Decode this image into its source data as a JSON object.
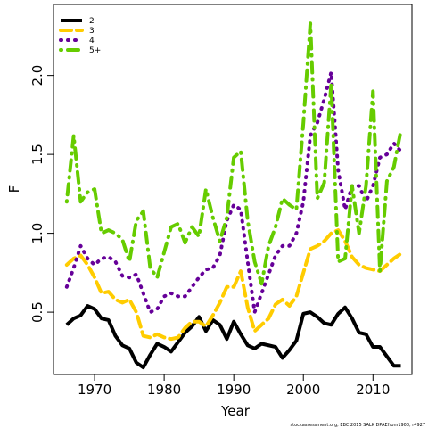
{
  "chart_data": {
    "type": "line",
    "x_label": "Year",
    "y_label": "F",
    "footnote": "stockassessment.org, EBC 2015 SALK DPAEfrom1900, r4927",
    "x": [
      1966,
      1967,
      1968,
      1969,
      1970,
      1971,
      1972,
      1973,
      1974,
      1975,
      1976,
      1977,
      1978,
      1979,
      1980,
      1981,
      1982,
      1983,
      1984,
      1985,
      1986,
      1987,
      1988,
      1989,
      1990,
      1991,
      1992,
      1993,
      1994,
      1995,
      1996,
      1997,
      1998,
      1999,
      2000,
      2001,
      2002,
      2003,
      2004,
      2005,
      2006,
      2007,
      2008,
      2009,
      2010,
      2011,
      2012,
      2013,
      2014
    ],
    "series": [
      {
        "name": "2",
        "color": "#000000",
        "line_style": "solid",
        "values": [
          0.42,
          0.46,
          0.48,
          0.54,
          0.52,
          0.46,
          0.45,
          0.35,
          0.29,
          0.27,
          0.18,
          0.15,
          0.23,
          0.3,
          0.28,
          0.25,
          0.31,
          0.37,
          0.41,
          0.47,
          0.38,
          0.45,
          0.42,
          0.33,
          0.44,
          0.36,
          0.29,
          0.27,
          0.3,
          0.29,
          0.28,
          0.21,
          0.26,
          0.32,
          0.49,
          0.5,
          0.47,
          0.43,
          0.42,
          0.49,
          0.53,
          0.46,
          0.37,
          0.36,
          0.28,
          0.28,
          0.22,
          0.16,
          0.16
        ]
      },
      {
        "name": "3",
        "color": "#ffcc00",
        "line_style": "dashed",
        "values": [
          0.8,
          0.84,
          0.86,
          0.8,
          0.72,
          0.62,
          0.63,
          0.58,
          0.56,
          0.58,
          0.5,
          0.35,
          0.34,
          0.36,
          0.34,
          0.33,
          0.34,
          0.4,
          0.44,
          0.44,
          0.41,
          0.48,
          0.56,
          0.66,
          0.66,
          0.76,
          0.53,
          0.38,
          0.42,
          0.46,
          0.55,
          0.58,
          0.54,
          0.6,
          0.75,
          0.9,
          0.92,
          0.95,
          1.0,
          1.02,
          0.95,
          0.85,
          0.8,
          0.78,
          0.77,
          0.76,
          0.8,
          0.84,
          0.87
        ]
      },
      {
        "name": "4",
        "color": "#660099",
        "line_style": "dotted",
        "values": [
          0.66,
          0.78,
          0.92,
          0.84,
          0.8,
          0.84,
          0.85,
          0.82,
          0.73,
          0.72,
          0.74,
          0.62,
          0.5,
          0.52,
          0.6,
          0.62,
          0.6,
          0.6,
          0.66,
          0.72,
          0.77,
          0.78,
          0.86,
          1.08,
          1.18,
          1.15,
          0.82,
          0.5,
          0.62,
          0.74,
          0.86,
          0.92,
          0.92,
          1.0,
          1.2,
          1.62,
          1.7,
          1.85,
          2.02,
          1.4,
          1.15,
          1.3,
          1.3,
          1.2,
          1.3,
          1.48,
          1.5,
          1.57,
          1.52
        ]
      },
      {
        "name": "5+",
        "color": "#66cc00",
        "line_style": "dotdash",
        "values": [
          1.2,
          1.62,
          1.2,
          1.26,
          1.28,
          1.0,
          1.02,
          1.0,
          0.96,
          0.82,
          1.08,
          1.14,
          0.78,
          0.72,
          0.88,
          1.04,
          1.06,
          0.94,
          1.04,
          0.98,
          1.28,
          1.1,
          0.95,
          1.1,
          1.48,
          1.52,
          1.08,
          0.82,
          0.68,
          0.92,
          1.04,
          1.22,
          1.18,
          1.15,
          1.7,
          2.33,
          1.22,
          1.32,
          1.95,
          0.82,
          0.84,
          1.3,
          1.0,
          1.3,
          1.9,
          0.76,
          1.33,
          1.42,
          1.65
        ]
      }
    ],
    "xlim": [
      1964.1,
      2015.6
    ],
    "xticks": [
      1970,
      1980,
      1990,
      2000,
      2010
    ],
    "ylim": [
      0.105,
      2.45
    ],
    "yticks": [
      0.5,
      {
        "value": 1,
        "label": "1.0"
      },
      1.5,
      {
        "value": 2,
        "label": "2.0"
      }
    ],
    "legend": "top-left",
    "grid": false
  }
}
